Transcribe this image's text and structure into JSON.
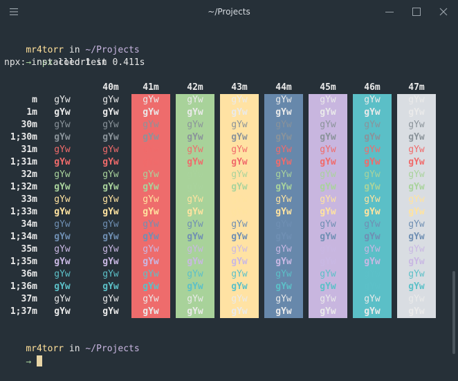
{
  "window": {
    "title": "~/Projects",
    "menu_icon": "hamburger-menu-icon",
    "min_icon": "minimize-icon",
    "max_icon": "maximize-icon",
    "close_icon": "close-icon"
  },
  "terminal": {
    "prompt1": {
      "user": "mr4torr",
      "in": " in ",
      "path": "~/Projects"
    },
    "cmd": {
      "arrow": "→",
      "program": "npx",
      "args": " colortest"
    },
    "output": "npx: installed 1 in 0.411s",
    "prompt2": {
      "user": "mr4torr",
      "in": " in ",
      "path": "~/Projects",
      "arrow": "→"
    }
  },
  "colortest": {
    "sample": "gYw",
    "headers": [
      "40m",
      "41m",
      "42m",
      "43m",
      "44m",
      "45m",
      "46m",
      "47m"
    ],
    "rows": [
      {
        "label": "m",
        "fg": "#eaeaea",
        "bold": false
      },
      {
        "label": "1m",
        "fg": "#eaeaea",
        "bold": true
      },
      {
        "label": "30m",
        "fg": "#8a939a",
        "bold": false
      },
      {
        "label": "1;30m",
        "fg": "#8a939a",
        "bold": true
      },
      {
        "label": "31m",
        "fg": "#f06b6b",
        "bold": false
      },
      {
        "label": "1;31m",
        "fg": "#f06b6b",
        "bold": true
      },
      {
        "label": "32m",
        "fg": "#a9d39c",
        "bold": false
      },
      {
        "label": "1;32m",
        "fg": "#a9d39c",
        "bold": true
      },
      {
        "label": "33m",
        "fg": "#ffe3a0",
        "bold": false
      },
      {
        "label": "1;33m",
        "fg": "#ffe3a0",
        "bold": true
      },
      {
        "label": "34m",
        "fg": "#6f8fb3",
        "bold": false
      },
      {
        "label": "1;34m",
        "fg": "#6f8fb3",
        "bold": true
      },
      {
        "label": "35m",
        "fg": "#c9b8e3",
        "bold": false
      },
      {
        "label": "1;35m",
        "fg": "#c9b8e3",
        "bold": true
      },
      {
        "label": "36m",
        "fg": "#5cc0c8",
        "bold": false
      },
      {
        "label": "1;36m",
        "fg": "#5cc0c8",
        "bold": true
      },
      {
        "label": "37m",
        "fg": "#eaeaea",
        "bold": false
      },
      {
        "label": "1;37m",
        "fg": "#eaeaea",
        "bold": true
      }
    ],
    "bg_colors": [
      "#263038",
      "#ee6c6c",
      "#a8d29a",
      "#ffe2a3",
      "#6788ab",
      "#c8b6df",
      "#5bbfc7",
      "#d9dde2"
    ]
  },
  "colors": {
    "user": "#ffe09a",
    "in": "#eaeaea",
    "path": "#c8b6e0",
    "arrow": "#a8d29a",
    "program": "#a8d29a"
  }
}
